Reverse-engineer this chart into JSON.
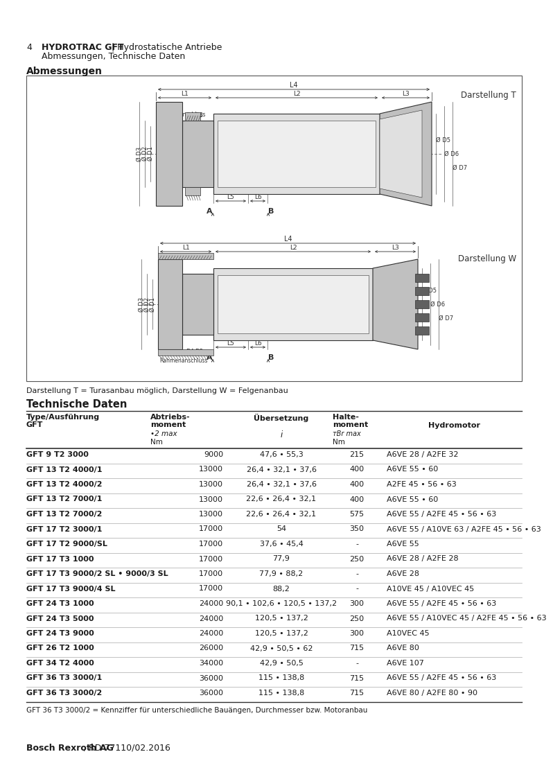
{
  "page_number": "4",
  "title_bold": "HYDROTRAC GFT",
  "title_normal": " | Hydrostatische Antriebe",
  "subtitle": "Abmessungen, Technische Daten",
  "section1_title": "Abmessungen",
  "diagram_note": "Darstellung T = Turasanbau möglich, Darstellung W = Felgenanbau",
  "section2_title": "Technische Daten",
  "table_rows": [
    [
      "GFT 9 T2 3000",
      "9000",
      "47,6 • 55,3",
      "215",
      "A6VE 28 / A2FE 32"
    ],
    [
      "GFT 13 T2 4000/1",
      "13000",
      "26,4 • 32,1 • 37,6",
      "400",
      "A6VE 55 • 60"
    ],
    [
      "GFT 13 T2 4000/2",
      "13000",
      "26,4 • 32,1 • 37,6",
      "400",
      "A2FE 45 • 56 • 63"
    ],
    [
      "GFT 13 T2 7000/1",
      "13000",
      "22,6 • 26,4 • 32,1",
      "400",
      "A6VE 55 • 60"
    ],
    [
      "GFT 13 T2 7000/2",
      "13000",
      "22,6 • 26,4 • 32,1",
      "575",
      "A6VE 55 / A2FE 45 • 56 • 63"
    ],
    [
      "GFT 17 T2 3000/1",
      "17000",
      "54",
      "350",
      "A6VE 55 / A10VE 63 / A2FE 45 • 56 • 63"
    ],
    [
      "GFT 17 T2 9000/SL",
      "17000",
      "37,6 • 45,4",
      "-",
      "A6VE 55"
    ],
    [
      "GFT 17 T3 1000",
      "17000",
      "77,9",
      "250",
      "A6VE 28 / A2FE 28"
    ],
    [
      "GFT 17 T3 9000/2 SL • 9000/3 SL",
      "17000",
      "77,9 • 88,2",
      "-",
      "A6VE 28"
    ],
    [
      "GFT 17 T3 9000/4 SL",
      "17000",
      "88,2",
      "-",
      "A10VE 45 / A10VEC 45"
    ],
    [
      "GFT 24 T3 1000",
      "24000",
      "90,1 • 102,6 • 120,5 • 137,2",
      "300",
      "A6VE 55 / A2FE 45 • 56 • 63"
    ],
    [
      "GFT 24 T3 5000",
      "24000",
      "120,5 • 137,2",
      "250",
      "A6VE 55 / A10VEC 45 / A2FE 45 • 56 • 63"
    ],
    [
      "GFT 24 T3 9000",
      "24000",
      "120,5 • 137,2",
      "300",
      "A10VEC 45"
    ],
    [
      "GFT 26 T2 1000",
      "26000",
      "42,9 • 50,5 • 62",
      "715",
      "A6VE 80"
    ],
    [
      "GFT 34 T2 4000",
      "34000",
      "42,9 • 50,5",
      "-",
      "A6VE 107"
    ],
    [
      "GFT 36 T3 3000/1",
      "36000",
      "115 • 138,8",
      "715",
      "A6VE 55 / A2FE 45 • 56 • 63"
    ],
    [
      "GFT 36 T3 3000/2",
      "36000",
      "115 • 138,8",
      "715",
      "A6VE 80 / A2FE 80 • 90"
    ]
  ],
  "table_footer": "GFT 36 T3 3000/2 = Kennziffer für unterschiedliche Bauängen, Durchmesser bzw. Motoranbau",
  "footer_bold": "Bosch Rexroth AG",
  "footer_normal": ", RD 77110/02.2016",
  "darstellung_T": "Darstellung T",
  "darstellung_W": "Darstellung W"
}
